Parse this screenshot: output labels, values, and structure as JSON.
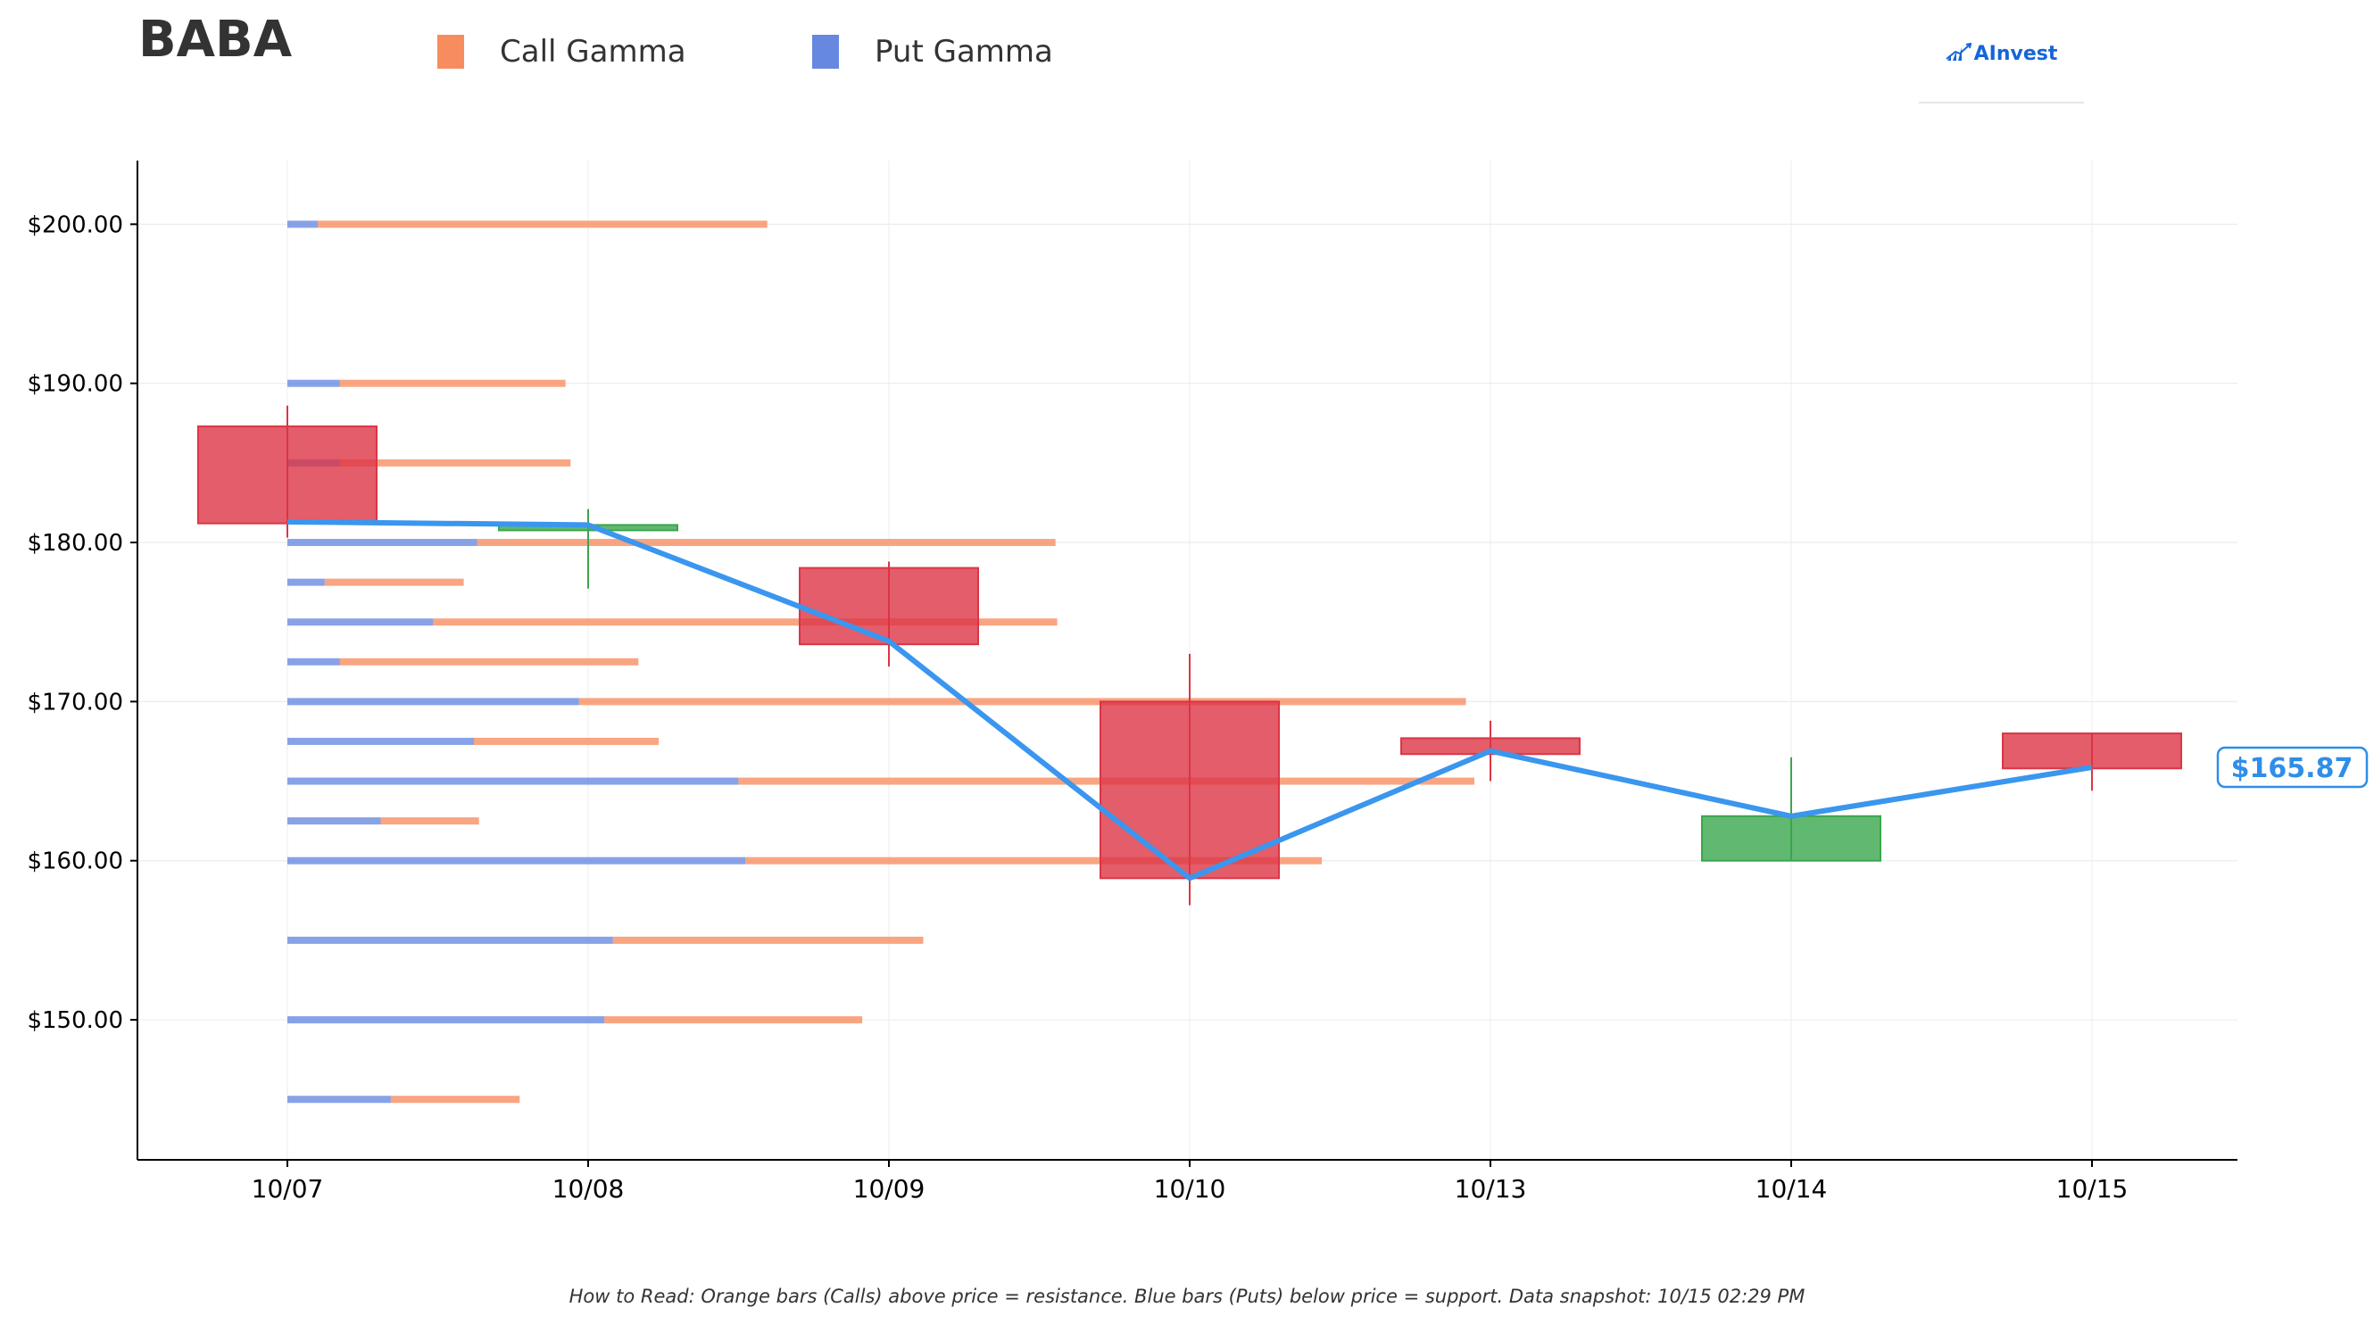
{
  "header": {
    "ticker": "BABA",
    "brand": "AInvest"
  },
  "footnote": "How to Read: Orange bars (Calls) above price = resistance. Blue bars (Puts) below price = support. Data snapshot: 10/15 02:29 PM",
  "colors": {
    "call": "#f78c5e",
    "put": "#6688e0",
    "candle_up": "#3aa64c",
    "candle_down": "#dc3545",
    "price_line": "#3a96ee",
    "label_text": "#2f8ee8"
  },
  "chart_data": {
    "type": "candlestick+bar",
    "legend": [
      {
        "name": "Call Gamma",
        "color": "#f78c5e"
      },
      {
        "name": "Put Gamma",
        "color": "#6688e0"
      }
    ],
    "x_labels": [
      "10/07",
      "10/08",
      "10/09",
      "10/10",
      "10/13",
      "10/14",
      "10/15"
    ],
    "y_ticks": [
      150,
      160,
      170,
      180,
      190,
      200
    ],
    "y_tick_labels": [
      "$150.00",
      "$160.00",
      "$170.00",
      "$180.00",
      "$190.00",
      "$200.00"
    ],
    "ylim": [
      141.2,
      204.0
    ],
    "grid": true,
    "candles": [
      {
        "date": "10/07",
        "open": 187.3,
        "close": 181.2,
        "high": 188.6,
        "low": 180.3
      },
      {
        "date": "10/08",
        "open": 180.8,
        "close": 181.1,
        "high": 182.1,
        "low": 177.1
      },
      {
        "date": "10/09",
        "open": 178.4,
        "close": 173.6,
        "high": 178.8,
        "low": 172.2
      },
      {
        "date": "10/10",
        "open": 170.0,
        "close": 158.9,
        "high": 173.0,
        "low": 157.2
      },
      {
        "date": "10/13",
        "open": 167.7,
        "close": 166.7,
        "high": 168.8,
        "low": 165.0
      },
      {
        "date": "10/14",
        "open": 160.0,
        "close": 162.8,
        "high": 166.5,
        "low": 160.0
      },
      {
        "date": "10/15",
        "open": 168.0,
        "close": 165.8,
        "high": 168.0,
        "low": 164.4
      }
    ],
    "price_line": [
      181.3,
      181.1,
      173.8,
      158.9,
      166.9,
      162.8,
      165.87
    ],
    "last_price_label": "$165.87",
    "gamma_levels": [
      {
        "strike": 145.0,
        "put": 0.61,
        "call": 0.76
      },
      {
        "strike": 150.0,
        "put": 1.87,
        "call": 1.52
      },
      {
        "strike": 155.0,
        "put": 1.92,
        "call": 1.83
      },
      {
        "strike": 160.0,
        "put": 2.7,
        "call": 3.4
      },
      {
        "strike": 162.5,
        "put": 0.55,
        "call": 0.58
      },
      {
        "strike": 165.0,
        "put": 2.66,
        "call": 4.34
      },
      {
        "strike": 167.5,
        "put": 1.1,
        "call": 1.09
      },
      {
        "strike": 170.0,
        "put": 1.72,
        "call": 5.23
      },
      {
        "strike": 172.5,
        "put": 0.31,
        "call": 1.76
      },
      {
        "strike": 175.0,
        "put": 0.86,
        "call": 3.68
      },
      {
        "strike": 177.5,
        "put": 0.22,
        "call": 0.82
      },
      {
        "strike": 180.0,
        "put": 1.12,
        "call": 3.41
      },
      {
        "strike": 185.0,
        "put": 0.31,
        "call": 1.36
      },
      {
        "strike": 190.0,
        "put": 0.31,
        "call": 1.33
      },
      {
        "strike": 200.0,
        "put": 0.18,
        "call": 2.65
      }
    ]
  }
}
